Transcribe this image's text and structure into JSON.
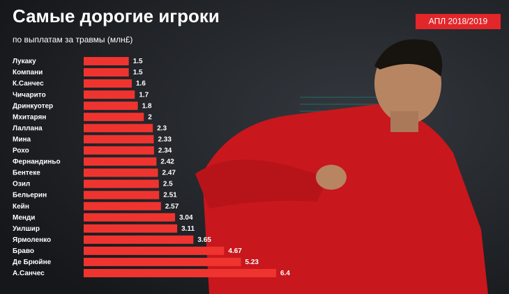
{
  "chart_data": {
    "type": "bar",
    "orientation": "horizontal",
    "title": "Самые дорогие игроки",
    "subtitle": "по выплатам за травмы  (млн£)",
    "badge": "АПЛ 2018/2019",
    "categories": [
      "Лукаку",
      "Компани",
      "К.Санчес",
      "Чичарито",
      "Дринкуотер",
      "Мхитарян",
      "Лаллана",
      "Мина",
      "Рохо",
      "Фернандиньо",
      "Бентеке",
      "Озил",
      "Бельерин",
      "Кейн",
      "Менди",
      "Уилшир",
      "Ярмоленко",
      "Браво",
      "Де Брюйне",
      "А.Санчес"
    ],
    "values": [
      1.5,
      1.5,
      1.6,
      1.7,
      1.8,
      2,
      2.3,
      2.33,
      2.34,
      2.42,
      2.47,
      2.5,
      2.51,
      2.57,
      3.04,
      3.11,
      3.65,
      4.67,
      5.23,
      6.4
    ],
    "color": "#ef3430"
  }
}
